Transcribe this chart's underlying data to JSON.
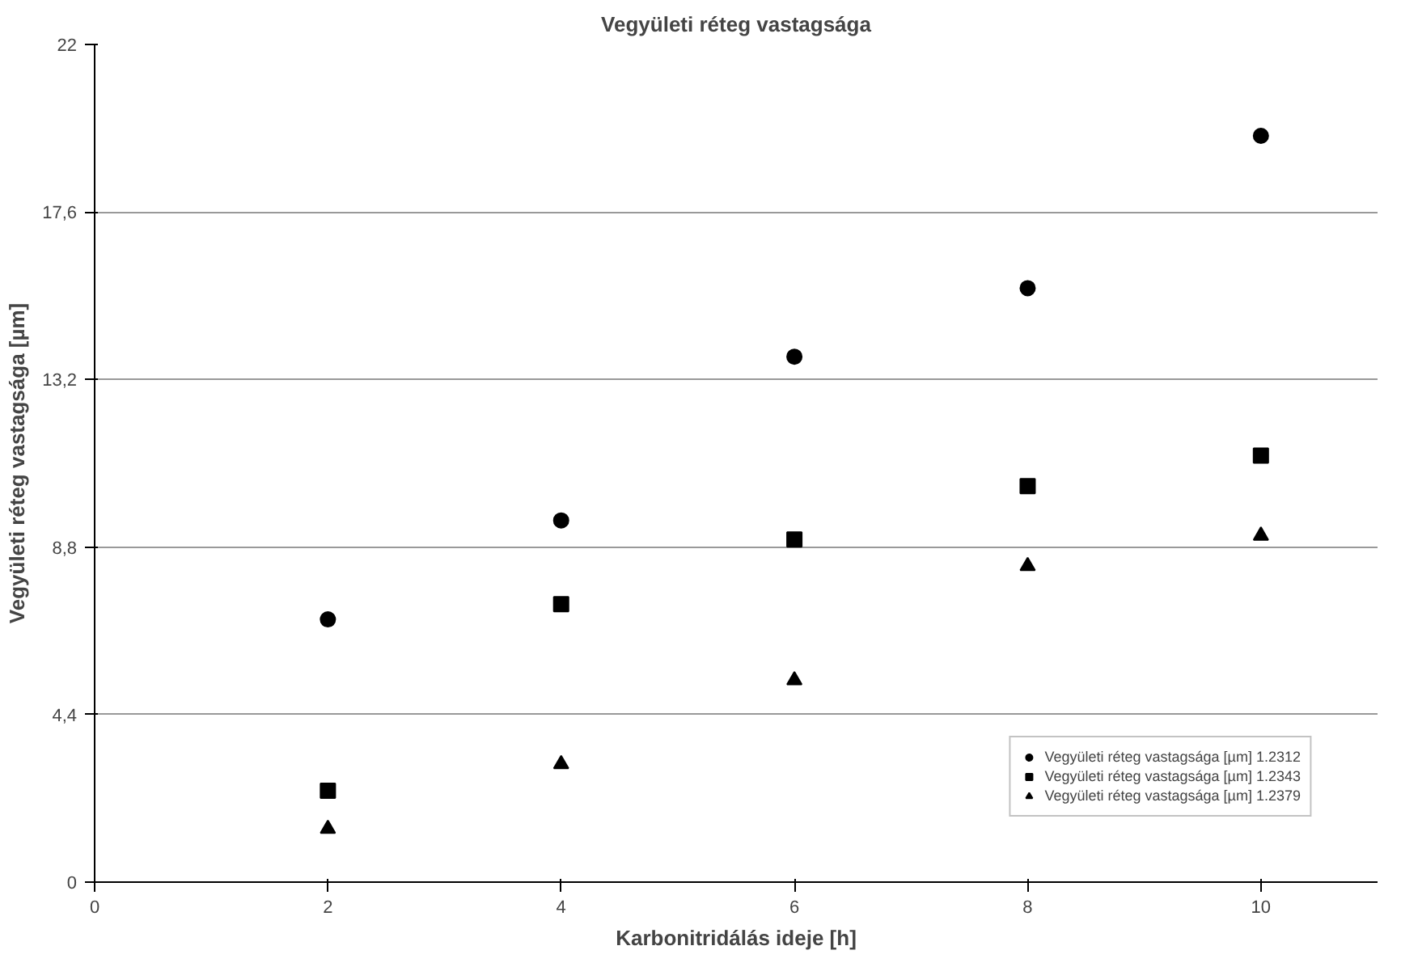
{
  "chart_data": {
    "type": "scatter",
    "title": "Vegyületi réteg vastagsága",
    "xlabel": "Karbonitridálás ideje [h]",
    "ylabel": "Vegyületi réteg vastagsága [µm]",
    "x": [
      2,
      4,
      6,
      8,
      10
    ],
    "series": [
      {
        "name": "Vegyületi réteg vastagsága [µm] 1.2312",
        "color": "#000000",
        "marker": "circle",
        "values": [
          6.9,
          9.5,
          13.8,
          15.6,
          19.6
        ]
      },
      {
        "name": "Vegyületi réteg vastagsága [µm] 1.2343",
        "color": "#000000",
        "marker": "square",
        "values": [
          2.4,
          7.3,
          9.0,
          10.4,
          11.2
        ]
      },
      {
        "name": "Vegyületi réteg vastagsága [µm] 1.2379",
        "color": "#000000",
        "marker": "triangle",
        "values": [
          1.4,
          3.1,
          5.3,
          8.3,
          9.1
        ]
      }
    ],
    "xlim": [
      0,
      11
    ],
    "xticks": [
      0,
      2,
      4,
      6,
      8,
      10
    ],
    "ylim": [
      0,
      22
    ],
    "yticks": [
      {
        "value": 0,
        "label": "0"
      },
      {
        "value": 4.4,
        "label": "4,4"
      },
      {
        "value": 8.8,
        "label": "8,8"
      },
      {
        "value": 13.2,
        "label": "13,2"
      },
      {
        "value": 17.6,
        "label": "17,6"
      },
      {
        "value": 22,
        "label": "22"
      }
    ],
    "grid": "y",
    "legend": "bottom right"
  }
}
